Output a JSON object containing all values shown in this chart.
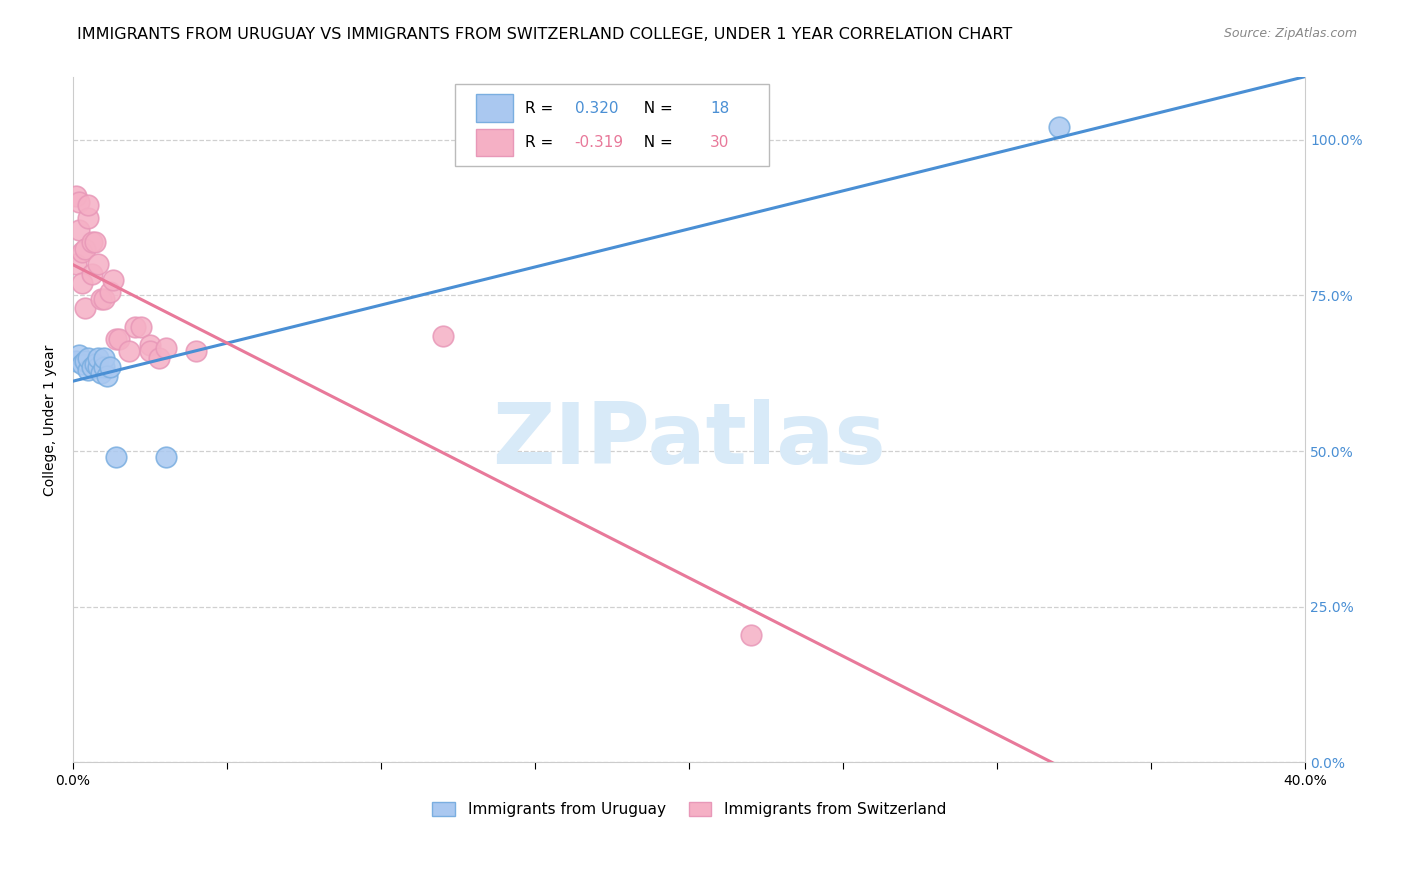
{
  "title": "IMMIGRANTS FROM URUGUAY VS IMMIGRANTS FROM SWITZERLAND COLLEGE, UNDER 1 YEAR CORRELATION CHART",
  "source": "Source: ZipAtlas.com",
  "ylabel": "College, Under 1 year",
  "legend_label_blue": "Immigrants from Uruguay",
  "legend_label_pink": "Immigrants from Switzerland",
  "R_blue": 0.32,
  "N_blue": 18,
  "R_pink": -0.319,
  "N_pink": 30,
  "xlim": [
    0.0,
    0.4
  ],
  "ylim": [
    0.0,
    1.1
  ],
  "xtick_labels_show": [
    "0.0%",
    "40.0%"
  ],
  "xtick_positions_labeled": [
    0.0,
    0.4
  ],
  "xtick_positions_all": [
    0.0,
    0.05,
    0.1,
    0.15,
    0.2,
    0.25,
    0.3,
    0.35,
    0.4
  ],
  "yticks": [
    0.0,
    0.25,
    0.5,
    0.75,
    1.0
  ],
  "blue_scatter_x": [
    0.001,
    0.002,
    0.003,
    0.004,
    0.005,
    0.005,
    0.006,
    0.007,
    0.008,
    0.008,
    0.009,
    0.01,
    0.01,
    0.011,
    0.012,
    0.014,
    0.03,
    0.32
  ],
  "blue_scatter_y": [
    0.645,
    0.655,
    0.64,
    0.645,
    0.63,
    0.65,
    0.635,
    0.64,
    0.635,
    0.65,
    0.625,
    0.635,
    0.65,
    0.62,
    0.635,
    0.49,
    0.49,
    1.02
  ],
  "pink_scatter_x": [
    0.001,
    0.001,
    0.002,
    0.002,
    0.003,
    0.003,
    0.004,
    0.004,
    0.005,
    0.005,
    0.006,
    0.006,
    0.007,
    0.008,
    0.009,
    0.01,
    0.012,
    0.013,
    0.014,
    0.015,
    0.018,
    0.02,
    0.022,
    0.025,
    0.025,
    0.028,
    0.03,
    0.04,
    0.12,
    0.22
  ],
  "pink_scatter_y": [
    0.8,
    0.91,
    0.855,
    0.9,
    0.82,
    0.77,
    0.825,
    0.73,
    0.875,
    0.895,
    0.785,
    0.835,
    0.835,
    0.8,
    0.745,
    0.745,
    0.755,
    0.775,
    0.68,
    0.68,
    0.66,
    0.7,
    0.7,
    0.67,
    0.66,
    0.65,
    0.665,
    0.66,
    0.685,
    0.205
  ],
  "blue_line_color": "#4a8fd4",
  "pink_line_color": "#e8799a",
  "blue_dot_facecolor": "#aac8f0",
  "pink_dot_facecolor": "#f5b0c5",
  "blue_dot_edgecolor": "#7aaee0",
  "pink_dot_edgecolor": "#e898b8",
  "watermark_color": "#d8eaf8",
  "grid_color": "#d0d0d0",
  "title_fontsize": 11.5,
  "source_fontsize": 9,
  "tick_fontsize": 10,
  "ylabel_fontsize": 10,
  "legend_fontsize": 11,
  "dot_size": 220
}
